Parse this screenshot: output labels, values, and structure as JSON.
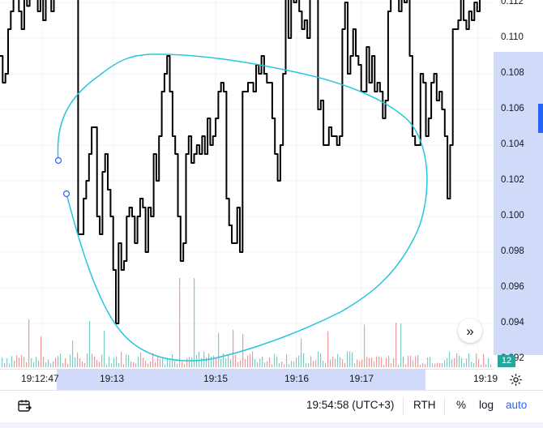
{
  "price_axis": {
    "labels": [
      "0.112",
      "0.110",
      "0.108",
      "0.106",
      "0.104",
      "0.102",
      "0.100",
      "0.098",
      "0.096",
      "0.094",
      "0.092"
    ],
    "last_value": "12"
  },
  "time_axis": {
    "labels": [
      "19:12:47",
      "19:13",
      "19:15",
      "19:16",
      "19:17",
      "19:19"
    ]
  },
  "bottom_bar": {
    "time": "19:54:58 (UTC+3)",
    "session": "RTH",
    "percent": "%",
    "log": "log",
    "auto": "auto"
  },
  "icons": [
    "date-range-icon",
    "gear-icon",
    "scroll-to-realtime-icon"
  ],
  "colors": {
    "price_line": "#000000",
    "drawing": "#26c6da",
    "volume_up": "#26a69a",
    "volume_down": "#ef5350",
    "highlight": "#d1daf8",
    "accent": "#2962ff"
  },
  "chart_data": {
    "type": "line",
    "title": "",
    "xlabel": "",
    "ylabel": "",
    "ylim": [
      0.092,
      0.1125
    ],
    "x_ticks": [
      "19:12:47",
      "19:13",
      "19:15",
      "19:16",
      "19:17",
      "19:19"
    ],
    "series": [
      {
        "values": [
          0.109,
          0.1075,
          0.108,
          0.1105,
          0.1115,
          0.1125,
          0.1125,
          0.1115,
          0.1105,
          0.1125,
          0.1118,
          0.1125,
          0.1125,
          0.1125,
          0.1115,
          0.1125,
          0.111,
          0.1125,
          0.1125,
          0.1115,
          0.1125,
          0.1125,
          0.1125,
          0.1125,
          0.1125,
          0.1125,
          0.1125,
          0.1125,
          0.1125,
          0.099,
          0.099,
          0.101,
          0.102,
          0.1035,
          0.105,
          0.105,
          0.1,
          0.099,
          0.1025,
          0.1035,
          0.1015,
          0.1,
          0.097,
          0.094,
          0.0985,
          0.097,
          0.0975,
          0.1,
          0.1005,
          0.1,
          0.0985,
          0.1,
          0.101,
          0.1005,
          0.098,
          0.1005,
          0.1,
          0.1035,
          0.102,
          0.1045,
          0.107,
          0.108,
          0.109,
          0.107,
          0.1045,
          0.1035,
          0.1,
          0.0975,
          0.0985,
          0.1035,
          0.1045,
          0.103,
          0.1035,
          0.104,
          0.1035,
          0.1045,
          0.1035,
          0.1055,
          0.104,
          0.1045,
          0.1055,
          0.107,
          0.1075,
          0.107,
          0.101,
          0.0995,
          0.0985,
          0.0985,
          0.1005,
          0.098,
          0.107,
          0.107,
          0.1075,
          0.1075,
          0.107,
          0.1085,
          0.108,
          0.109,
          0.108,
          0.1075,
          0.1075,
          0.1055,
          0.1035,
          0.102,
          0.104,
          0.108,
          0.1125,
          0.11,
          0.1125,
          0.112,
          0.1125,
          0.1115,
          0.1105,
          0.111,
          0.11,
          0.1125,
          0.1125,
          0.1125,
          0.106,
          0.1065,
          0.104,
          0.104,
          0.105,
          0.1045,
          0.1045,
          0.104,
          0.1045,
          0.1105,
          0.112,
          0.108,
          0.109,
          0.1105,
          0.109,
          0.1085,
          0.107,
          0.107,
          0.1095,
          0.1075,
          0.109,
          0.107,
          0.1075,
          0.107,
          0.1055,
          0.1065,
          0.1115,
          0.1125,
          0.1125,
          0.1125,
          0.1115,
          0.1125,
          0.112,
          0.1125,
          0.109,
          0.1045,
          0.104,
          0.104,
          0.108,
          0.1075,
          0.1045,
          0.1055,
          0.1075,
          0.108,
          0.1065,
          0.107,
          0.106,
          0.1045,
          0.101,
          0.104,
          0.1105,
          0.1105,
          0.111,
          0.1125,
          0.111,
          0.1105,
          0.1115,
          0.111,
          0.112,
          0.1115,
          0.1125
        ]
      }
    ]
  }
}
